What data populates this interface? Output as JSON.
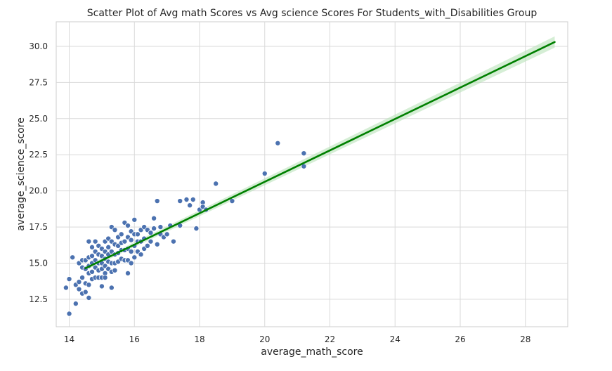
{
  "chart_data": {
    "type": "scatter",
    "title": "Scatter Plot of Avg math Scores vs  Avg science Scores For Students_with_Disabilities Group",
    "xlabel": "average_math_score",
    "ylabel": "average_science_score",
    "xlim": [
      13.6,
      29.3
    ],
    "ylim": [
      10.6,
      31.7
    ],
    "xticks": [
      14,
      16,
      18,
      20,
      22,
      24,
      26,
      28
    ],
    "yticks": [
      12.5,
      15.0,
      17.5,
      20.0,
      22.5,
      25.0,
      27.5,
      30.0
    ],
    "ytick_labels": [
      "12.5",
      "15.0",
      "17.5",
      "20.0",
      "22.5",
      "25.0",
      "27.5",
      "30.0"
    ],
    "grid": true,
    "point_color": "#4c72b0",
    "line_color": "#008000",
    "band_color": "#b9e3b9",
    "regression": {
      "x": [
        14.5,
        28.9
      ],
      "y": [
        14.65,
        30.3
      ]
    },
    "points": {
      "x": [
        13.9,
        14.0,
        14.0,
        14.1,
        14.2,
        14.2,
        14.3,
        14.3,
        14.3,
        14.4,
        14.4,
        14.4,
        14.4,
        14.5,
        14.5,
        14.5,
        14.5,
        14.6,
        14.6,
        14.6,
        14.6,
        14.6,
        14.6,
        14.7,
        14.7,
        14.7,
        14.7,
        14.7,
        14.8,
        14.8,
        14.8,
        14.8,
        14.8,
        14.9,
        14.9,
        14.9,
        14.9,
        14.9,
        15.0,
        15.0,
        15.0,
        15.0,
        15.0,
        15.0,
        15.1,
        15.1,
        15.1,
        15.1,
        15.1,
        15.1,
        15.2,
        15.2,
        15.2,
        15.2,
        15.2,
        15.3,
        15.3,
        15.3,
        15.3,
        15.3,
        15.3,
        15.4,
        15.4,
        15.4,
        15.4,
        15.4,
        15.5,
        15.5,
        15.5,
        15.5,
        15.6,
        15.6,
        15.6,
        15.6,
        15.7,
        15.7,
        15.7,
        15.7,
        15.8,
        15.8,
        15.8,
        15.8,
        15.8,
        15.9,
        15.9,
        15.9,
        15.9,
        16.0,
        16.0,
        16.0,
        16.0,
        16.1,
        16.1,
        16.1,
        16.2,
        16.2,
        16.2,
        16.3,
        16.3,
        16.3,
        16.4,
        16.4,
        16.5,
        16.5,
        16.6,
        16.6,
        16.7,
        16.7,
        16.8,
        16.8,
        16.9,
        17.0,
        17.1,
        17.2,
        17.4,
        17.4,
        17.6,
        17.7,
        17.8,
        17.9,
        18.0,
        18.1,
        18.1,
        18.2,
        18.5,
        19.0,
        20.0,
        20.4,
        21.2,
        21.2
      ],
      "y": [
        13.3,
        13.9,
        11.5,
        15.4,
        12.2,
        13.5,
        15.0,
        13.7,
        13.2,
        15.2,
        14.7,
        14.0,
        12.9,
        15.2,
        14.6,
        13.6,
        13.0,
        16.5,
        15.4,
        14.8,
        14.3,
        13.5,
        12.6,
        16.1,
        15.5,
        15.0,
        14.4,
        13.9,
        16.5,
        15.8,
        15.2,
        14.7,
        14.0,
        16.2,
        15.6,
        15.0,
        14.5,
        14.0,
        16.0,
        15.5,
        15.0,
        14.6,
        14.0,
        13.4,
        16.5,
        15.8,
        15.3,
        14.8,
        14.3,
        14.0,
        16.7,
        16.1,
        15.6,
        15.1,
        14.6,
        17.5,
        16.5,
        15.8,
        15.0,
        14.4,
        13.3,
        17.3,
        16.3,
        15.6,
        15.0,
        14.5,
        16.8,
        16.2,
        15.7,
        15.1,
        17.0,
        16.4,
        15.9,
        15.3,
        17.8,
        16.5,
        15.9,
        15.2,
        17.6,
        16.8,
        16.0,
        15.2,
        14.3,
        17.2,
        16.6,
        15.8,
        15.0,
        18.0,
        17.0,
        16.2,
        15.4,
        17.0,
        16.5,
        15.8,
        17.3,
        16.5,
        15.6,
        17.5,
        16.7,
        16.0,
        17.3,
        16.2,
        17.1,
        16.5,
        18.1,
        17.4,
        19.3,
        16.3,
        17.5,
        17.0,
        16.8,
        17.0,
        17.6,
        16.5,
        19.3,
        17.6,
        19.4,
        19.0,
        19.4,
        17.4,
        18.7,
        19.2,
        18.9,
        18.7,
        20.5,
        19.3,
        21.2,
        23.3,
        22.6,
        21.7
      ]
    }
  }
}
